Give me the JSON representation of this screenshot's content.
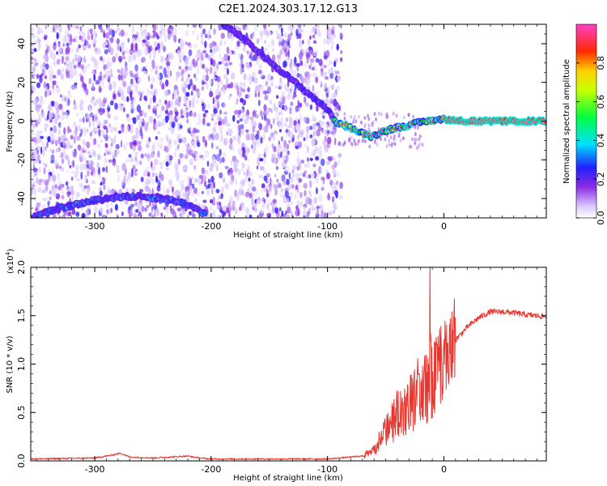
{
  "title": "C2E1.2024.303.17.12.G13",
  "colors": {
    "snr_line": "#e8352e",
    "axis": "#000000",
    "background": "#ffffff",
    "spectrogram_scatter": "#7a3df0"
  },
  "chart_data": [
    {
      "type": "heatmap",
      "name": "spectrogram",
      "xlabel": "Height of straight line (km)",
      "ylabel": "Frequency (Hz)",
      "xlim": [
        -355,
        88
      ],
      "ylim": [
        -50,
        50
      ],
      "xticks": [
        -300,
        -200,
        -100,
        0
      ],
      "xtick_labels": [
        "-300",
        "-200",
        "-100",
        "0"
      ],
      "yticks": [
        -40,
        -20,
        0,
        20,
        40
      ],
      "ytick_labels": [
        "-40",
        "-20",
        "0",
        "20",
        "40"
      ],
      "colorbar": {
        "label": "Normalized spectral amplitude",
        "range": [
          0,
          1
        ],
        "ticks": [
          0.0,
          0.2,
          0.4,
          0.6,
          0.8
        ],
        "tick_labels": [
          "0.0",
          "0.2",
          "0.4",
          "0.6",
          "0.8"
        ],
        "colormap": "rainbow (violet-blue-cyan-green-yellow-red-magenta)"
      },
      "ridges": [
        {
          "points": [
            [
              -355,
              -50
            ],
            [
              -330,
              -45
            ],
            [
              -300,
              -41
            ],
            [
              -280,
              -39
            ],
            [
              -260,
              -39
            ],
            [
              -240,
              -40
            ],
            [
              -220,
              -43
            ],
            [
              -205,
              -48
            ]
          ],
          "amplitude": 0.35
        },
        {
          "points": [
            [
              -190,
              50
            ],
            [
              -175,
              44
            ],
            [
              -160,
              36
            ],
            [
              -140,
              26
            ],
            [
              -120,
              16
            ],
            [
              -100,
              6
            ],
            [
              -93,
              0
            ]
          ],
          "amplitude": 0.25
        },
        {
          "points": [
            [
              -95,
              0
            ],
            [
              -85,
              -2
            ],
            [
              -72,
              -6
            ],
            [
              -62,
              -8
            ],
            [
              -55,
              -6
            ],
            [
              -45,
              -4
            ],
            [
              -30,
              -2
            ],
            [
              -15,
              0
            ],
            [
              0,
              1
            ],
            [
              20,
              0
            ],
            [
              88,
              0
            ]
          ],
          "amplitude": 0.9
        }
      ]
    },
    {
      "type": "line",
      "name": "snr",
      "xlabel": "Height of straight line (km)",
      "ylabel": "SNR (10 * v/v)",
      "scale_label": "(x10",
      "scale_exponent": "4",
      "xlim": [
        -355,
        88
      ],
      "ylim": [
        0,
        2.0
      ],
      "xticks": [
        -300,
        -200,
        -100,
        0
      ],
      "xtick_labels": [
        "-300",
        "-200",
        "-100",
        "0"
      ],
      "yticks": [
        0.0,
        0.5,
        1.0,
        1.5,
        2.0
      ],
      "ytick_labels": [
        "0.0",
        "0.5",
        "1.0",
        "1.5",
        "2.0"
      ],
      "envelope": {
        "x": [
          -355,
          -300,
          -285,
          -278,
          -270,
          -250,
          -220,
          -210,
          -200,
          -100,
          -70,
          -60,
          -50,
          -40,
          -30,
          -20,
          -10,
          0,
          10,
          20,
          30,
          40,
          50,
          60,
          70,
          88
        ],
        "y": [
          0.02,
          0.03,
          0.06,
          0.08,
          0.04,
          0.03,
          0.05,
          0.03,
          0.02,
          0.02,
          0.05,
          0.12,
          0.3,
          0.5,
          0.58,
          0.75,
          0.88,
          1.05,
          1.25,
          1.38,
          1.48,
          1.54,
          1.54,
          1.53,
          1.51,
          1.49
        ]
      },
      "spike": {
        "x": -12,
        "y": 2.0
      }
    }
  ]
}
